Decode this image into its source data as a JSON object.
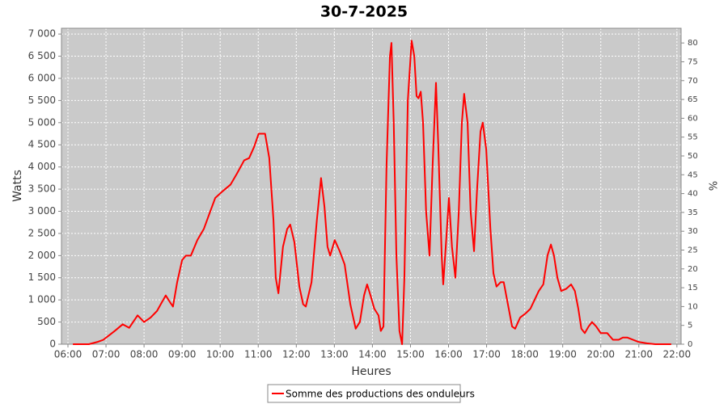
{
  "chart_data": {
    "type": "line",
    "title": "30-7-2025",
    "x_label": "Heures",
    "y_label": "Watts",
    "y2_label": "%",
    "grid": true,
    "legend": "bottom",
    "xlim": [
      5.83,
      22.11
    ],
    "xticks": [
      {
        "value": 6,
        "label": "06:00"
      },
      {
        "value": 7,
        "label": "07:00"
      },
      {
        "value": 8,
        "label": "08:00"
      },
      {
        "value": 9,
        "label": "09:00"
      },
      {
        "value": 10,
        "label": "10:00"
      },
      {
        "value": 11,
        "label": "11:00"
      },
      {
        "value": 12,
        "label": "12:00"
      },
      {
        "value": 13,
        "label": "13:00"
      },
      {
        "value": 14,
        "label": "14:00"
      },
      {
        "value": 15,
        "label": "15:00"
      },
      {
        "value": 16,
        "label": "16:00"
      },
      {
        "value": 17,
        "label": "17:00"
      },
      {
        "value": 18,
        "label": "18:00"
      },
      {
        "value": 19,
        "label": "19:00"
      },
      {
        "value": 20,
        "label": "20:00"
      },
      {
        "value": 21,
        "label": "21:00"
      },
      {
        "value": 22,
        "label": "22:00"
      }
    ],
    "ylim": [
      0,
      7130
    ],
    "yticks": [
      0,
      500,
      {
        "value": 1000,
        "label": "1 000"
      },
      {
        "value": 1500,
        "label": "1 500"
      },
      {
        "value": 2000,
        "label": "2 000"
      },
      {
        "value": 2500,
        "label": "2 500"
      },
      {
        "value": 3000,
        "label": "3 000"
      },
      {
        "value": 3500,
        "label": "3 500"
      },
      {
        "value": 4000,
        "label": "4 000"
      },
      {
        "value": 4500,
        "label": "4 500"
      },
      {
        "value": 5000,
        "label": "5 000"
      },
      {
        "value": 5500,
        "label": "5 500"
      },
      {
        "value": 6000,
        "label": "6 000"
      },
      {
        "value": 6500,
        "label": "6 500"
      },
      {
        "value": 7000,
        "label": "7 000"
      }
    ],
    "y2lim": [
      0,
      83.9
    ],
    "y2ticks": [
      0,
      5,
      10,
      15,
      20,
      25,
      30,
      35,
      40,
      45,
      50,
      55,
      60,
      65,
      70,
      75,
      80
    ],
    "x": [
      6.13,
      6.55,
      6.77,
      6.93,
      7.08,
      7.23,
      7.44,
      7.61,
      7.83,
      8.0,
      8.17,
      8.34,
      8.47,
      8.57,
      8.68,
      8.76,
      8.87,
      9.0,
      9.1,
      9.23,
      9.4,
      9.57,
      9.74,
      9.87,
      10.06,
      10.27,
      10.44,
      10.63,
      10.76,
      10.89,
      11.01,
      11.18,
      11.29,
      11.4,
      11.46,
      11.53,
      11.65,
      11.76,
      11.84,
      11.95,
      12.08,
      12.18,
      12.25,
      12.4,
      12.54,
      12.65,
      12.74,
      12.82,
      12.89,
      13.01,
      13.14,
      13.27,
      13.42,
      13.56,
      13.67,
      13.78,
      13.86,
      13.95,
      14.05,
      14.16,
      14.22,
      14.29,
      14.37,
      14.46,
      14.5,
      14.56,
      14.63,
      14.71,
      14.78,
      14.84,
      14.93,
      15.03,
      15.1,
      15.16,
      15.21,
      15.27,
      15.33,
      15.41,
      15.5,
      15.58,
      15.67,
      15.73,
      15.82,
      15.86,
      15.95,
      16.01,
      16.09,
      16.18,
      16.27,
      16.35,
      16.41,
      16.5,
      16.58,
      16.67,
      16.75,
      16.84,
      16.9,
      16.99,
      17.1,
      17.18,
      17.26,
      17.37,
      17.45,
      17.56,
      17.67,
      17.75,
      17.88,
      18.03,
      18.15,
      18.26,
      18.37,
      18.49,
      18.6,
      18.69,
      18.77,
      18.86,
      18.96,
      19.09,
      19.22,
      19.32,
      19.41,
      19.49,
      19.58,
      19.68,
      19.77,
      19.88,
      20.0,
      20.17,
      20.32,
      20.47,
      20.58,
      20.7,
      20.85,
      21.0,
      21.21,
      21.43,
      21.85
    ],
    "series": [
      {
        "name": "Somme des productions des onduleurs",
        "color": "#ff0000",
        "values": [
          0,
          0,
          50,
          100,
          200,
          300,
          450,
          370,
          650,
          500,
          600,
          750,
          950,
          1100,
          950,
          850,
          1400,
          1900,
          2000,
          2000,
          2350,
          2600,
          3000,
          3300,
          3450,
          3600,
          3850,
          4150,
          4200,
          4450,
          4750,
          4750,
          4200,
          2800,
          1500,
          1150,
          2200,
          2600,
          2700,
          2300,
          1300,
          900,
          850,
          1400,
          2800,
          3750,
          3100,
          2200,
          2000,
          2350,
          2100,
          1800,
          900,
          350,
          500,
          1100,
          1350,
          1100,
          800,
          650,
          300,
          400,
          4000,
          6500,
          6800,
          5000,
          2000,
          300,
          0,
          1500,
          5500,
          6850,
          6500,
          5600,
          5550,
          5700,
          5000,
          3000,
          2000,
          4000,
          5900,
          4500,
          2000,
          1350,
          2500,
          3300,
          2200,
          1500,
          3000,
          5000,
          5650,
          5000,
          3000,
          2100,
          3500,
          4800,
          5000,
          4400,
          2600,
          1600,
          1300,
          1400,
          1400,
          900,
          400,
          350,
          600,
          700,
          800,
          1000,
          1200,
          1350,
          2000,
          2250,
          2000,
          1500,
          1200,
          1250,
          1350,
          1200,
          800,
          350,
          250,
          400,
          500,
          400,
          250,
          250,
          100,
          100,
          150,
          150,
          100,
          50,
          20,
          0,
          0
        ]
      }
    ]
  }
}
